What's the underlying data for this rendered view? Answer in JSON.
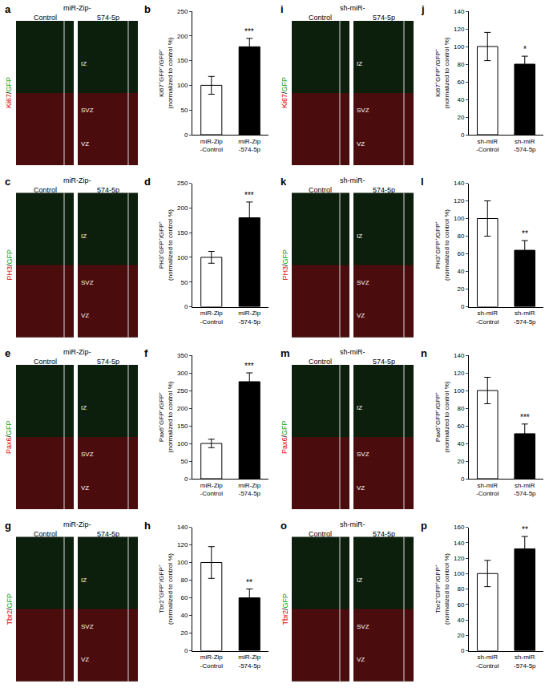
{
  "chart_data": [
    {
      "type": "bar",
      "panel_label": "b",
      "categories": [
        "miR-Zip -Control",
        "miR-Zip -574-5p"
      ],
      "values": [
        100,
        178
      ],
      "errors": [
        18,
        17
      ],
      "colors": [
        "#ffffff",
        "#000000"
      ],
      "significance": "***",
      "y_label": "Ki67⁺GFP⁺/GFP⁺ (normalized to control %)",
      "ylim": [
        0,
        250
      ],
      "yticks": [
        0,
        50,
        100,
        150,
        200,
        250
      ],
      "grid": false
    },
    {
      "type": "bar",
      "panel_label": "d",
      "categories": [
        "miR-Zip -Control",
        "miR-Zip -574-5p"
      ],
      "values": [
        100,
        180
      ],
      "errors": [
        12,
        32
      ],
      "colors": [
        "#ffffff",
        "#000000"
      ],
      "significance": "***",
      "y_label": "PH3⁺GFP⁺/GFP⁺ (normalized to control %)",
      "ylim": [
        0,
        250
      ],
      "yticks": [
        0,
        50,
        100,
        150,
        200,
        250
      ],
      "grid": false
    },
    {
      "type": "bar",
      "panel_label": "f",
      "categories": [
        "miR-Zip -Control",
        "miR-Zip -574-5p"
      ],
      "values": [
        100,
        275
      ],
      "errors": [
        12,
        25
      ],
      "colors": [
        "#ffffff",
        "#000000"
      ],
      "significance": "***",
      "y_label": "Pax6⁺GFP⁺/GFP⁺ (normalized to control %)",
      "ylim": [
        0,
        350
      ],
      "yticks": [
        0,
        50,
        100,
        150,
        200,
        250,
        300,
        350
      ],
      "grid": false
    },
    {
      "type": "bar",
      "panel_label": "h",
      "categories": [
        "miR-Zip -Control",
        "miR-Zip -574-5p"
      ],
      "values": [
        100,
        60
      ],
      "errors": [
        18,
        10
      ],
      "colors": [
        "#ffffff",
        "#000000"
      ],
      "significance": "**",
      "y_label": "Tbr2⁺GFP⁺/GFP⁺ (normalized to control %)",
      "ylim": [
        0,
        140
      ],
      "yticks": [
        0,
        20,
        40,
        60,
        80,
        100,
        120,
        140
      ],
      "grid": false
    },
    {
      "type": "bar",
      "panel_label": "j",
      "categories": [
        "sh-miR -Control",
        "sh-miR -574-5p"
      ],
      "values": [
        100,
        80
      ],
      "errors": [
        16,
        9
      ],
      "colors": [
        "#ffffff",
        "#000000"
      ],
      "significance": "*",
      "y_label": "Ki67⁺GFP⁺/GFP⁺ (normalized to control %)",
      "ylim": [
        0,
        140
      ],
      "yticks": [
        0,
        20,
        40,
        60,
        80,
        100,
        120,
        140
      ],
      "grid": false
    },
    {
      "type": "bar",
      "panel_label": "l",
      "categories": [
        "sh-miR -Control",
        "sh-miR -574-5p"
      ],
      "values": [
        100,
        64
      ],
      "errors": [
        20,
        11
      ],
      "colors": [
        "#ffffff",
        "#000000"
      ],
      "significance": "**",
      "y_label": "PH3⁺GFP⁺/GFP⁺ (normalized to control %)",
      "ylim": [
        0,
        140
      ],
      "yticks": [
        0,
        20,
        40,
        60,
        80,
        100,
        120,
        140
      ],
      "grid": false
    },
    {
      "type": "bar",
      "panel_label": "n",
      "categories": [
        "sh-miR -Control",
        "sh-miR -574-5p"
      ],
      "values": [
        100,
        51
      ],
      "errors": [
        15,
        11
      ],
      "colors": [
        "#ffffff",
        "#000000"
      ],
      "significance": "***",
      "y_label": "Pax6⁺GFP⁺/GFP⁺ (normalized to control %)",
      "ylim": [
        0,
        140
      ],
      "yticks": [
        0,
        20,
        40,
        60,
        80,
        100,
        120,
        140
      ],
      "grid": false
    },
    {
      "type": "bar",
      "panel_label": "p",
      "categories": [
        "sh-miR -Control",
        "sh-miR -574-5p"
      ],
      "values": [
        100,
        132
      ],
      "errors": [
        17,
        16
      ],
      "colors": [
        "#ffffff",
        "#000000"
      ],
      "significance": "**",
      "y_label": "Tbr2⁺GFP⁺/GFP⁺ (normalized to control %)",
      "ylim": [
        0,
        160
      ],
      "yticks": [
        0,
        20,
        40,
        60,
        80,
        100,
        120,
        140,
        160
      ],
      "grid": false
    }
  ],
  "image_panels": [
    {
      "panel_label": "a",
      "group": "miR-Zip-",
      "conditions": [
        "Control",
        "574-5p"
      ],
      "stain": [
        "Ki67",
        "GFP"
      ],
      "layers": [
        "IZ",
        "SVZ",
        "VZ"
      ]
    },
    {
      "panel_label": "c",
      "group": "miR-Zip-",
      "conditions": [
        "Control",
        "574-5p"
      ],
      "stain": [
        "PH3",
        "GFP"
      ],
      "layers": [
        "IZ",
        "SVZ",
        "VZ"
      ]
    },
    {
      "panel_label": "e",
      "group": "miR-Zip-",
      "conditions": [
        "Control",
        "574-5p"
      ],
      "stain": [
        "Pax6",
        "GFP"
      ],
      "layers": [
        "IZ",
        "SVZ",
        "VZ"
      ]
    },
    {
      "panel_label": "g",
      "group": "miR-Zip-",
      "conditions": [
        "Control",
        "574-5p"
      ],
      "stain": [
        "Tbr2",
        "GFP"
      ],
      "layers": [
        "IZ",
        "SVZ",
        "VZ"
      ]
    },
    {
      "panel_label": "i",
      "group": "sh-miR-",
      "conditions": [
        "Control",
        "574-5p"
      ],
      "stain": [
        "Ki67",
        "GFP"
      ],
      "layers": [
        "IZ",
        "SVZ",
        "VZ"
      ]
    },
    {
      "panel_label": "k",
      "group": "sh-miR-",
      "conditions": [
        "Control",
        "574-5p"
      ],
      "stain": [
        "PH3",
        "GFP"
      ],
      "layers": [
        "IZ",
        "SVZ",
        "VZ"
      ]
    },
    {
      "panel_label": "m",
      "group": "sh-miR-",
      "conditions": [
        "Control",
        "574-5p"
      ],
      "stain": [
        "Pax6",
        "GFP"
      ],
      "layers": [
        "IZ",
        "SVZ",
        "VZ"
      ]
    },
    {
      "panel_label": "o",
      "group": "sh-miR-",
      "conditions": [
        "Control",
        "574-5p"
      ],
      "stain": [
        "Tbr2",
        "GFP"
      ],
      "layers": [
        "IZ",
        "SVZ",
        "VZ"
      ]
    }
  ]
}
